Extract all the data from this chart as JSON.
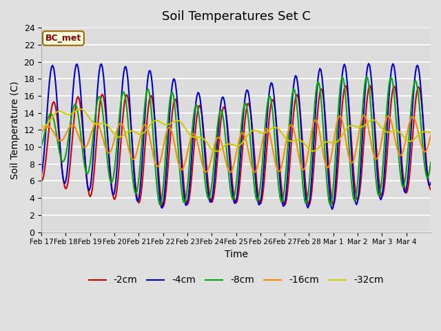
{
  "title": "Soil Temperatures Set C",
  "xlabel": "Time",
  "ylabel": "Soil Temperature (C)",
  "label_text": "BC_met",
  "legend_labels": [
    "-2cm",
    "-4cm",
    "-8cm",
    "-16cm",
    "-32cm"
  ],
  "line_colors": [
    "#cc0000",
    "#0000cc",
    "#00aa00",
    "#ff8800",
    "#cccc00"
  ],
  "x_tick_labels": [
    "Feb 17",
    "Feb 18",
    "Feb 19",
    "Feb 20",
    "Feb 21",
    "Feb 22",
    "Feb 23",
    "Feb 24",
    "Feb 25",
    "Feb 26",
    "Feb 27",
    "Feb 28",
    "Mar 1",
    "Mar 2",
    "Mar 3",
    "Mar 4"
  ],
  "ylim": [
    0,
    24
  ],
  "yticks": [
    0,
    2,
    4,
    6,
    8,
    10,
    12,
    14,
    16,
    18,
    20,
    22,
    24
  ],
  "bg_color": "#e0e0e0",
  "plot_bg_color": "#dcdcdc",
  "grid_color": "#ffffff",
  "line_width": 1.5
}
